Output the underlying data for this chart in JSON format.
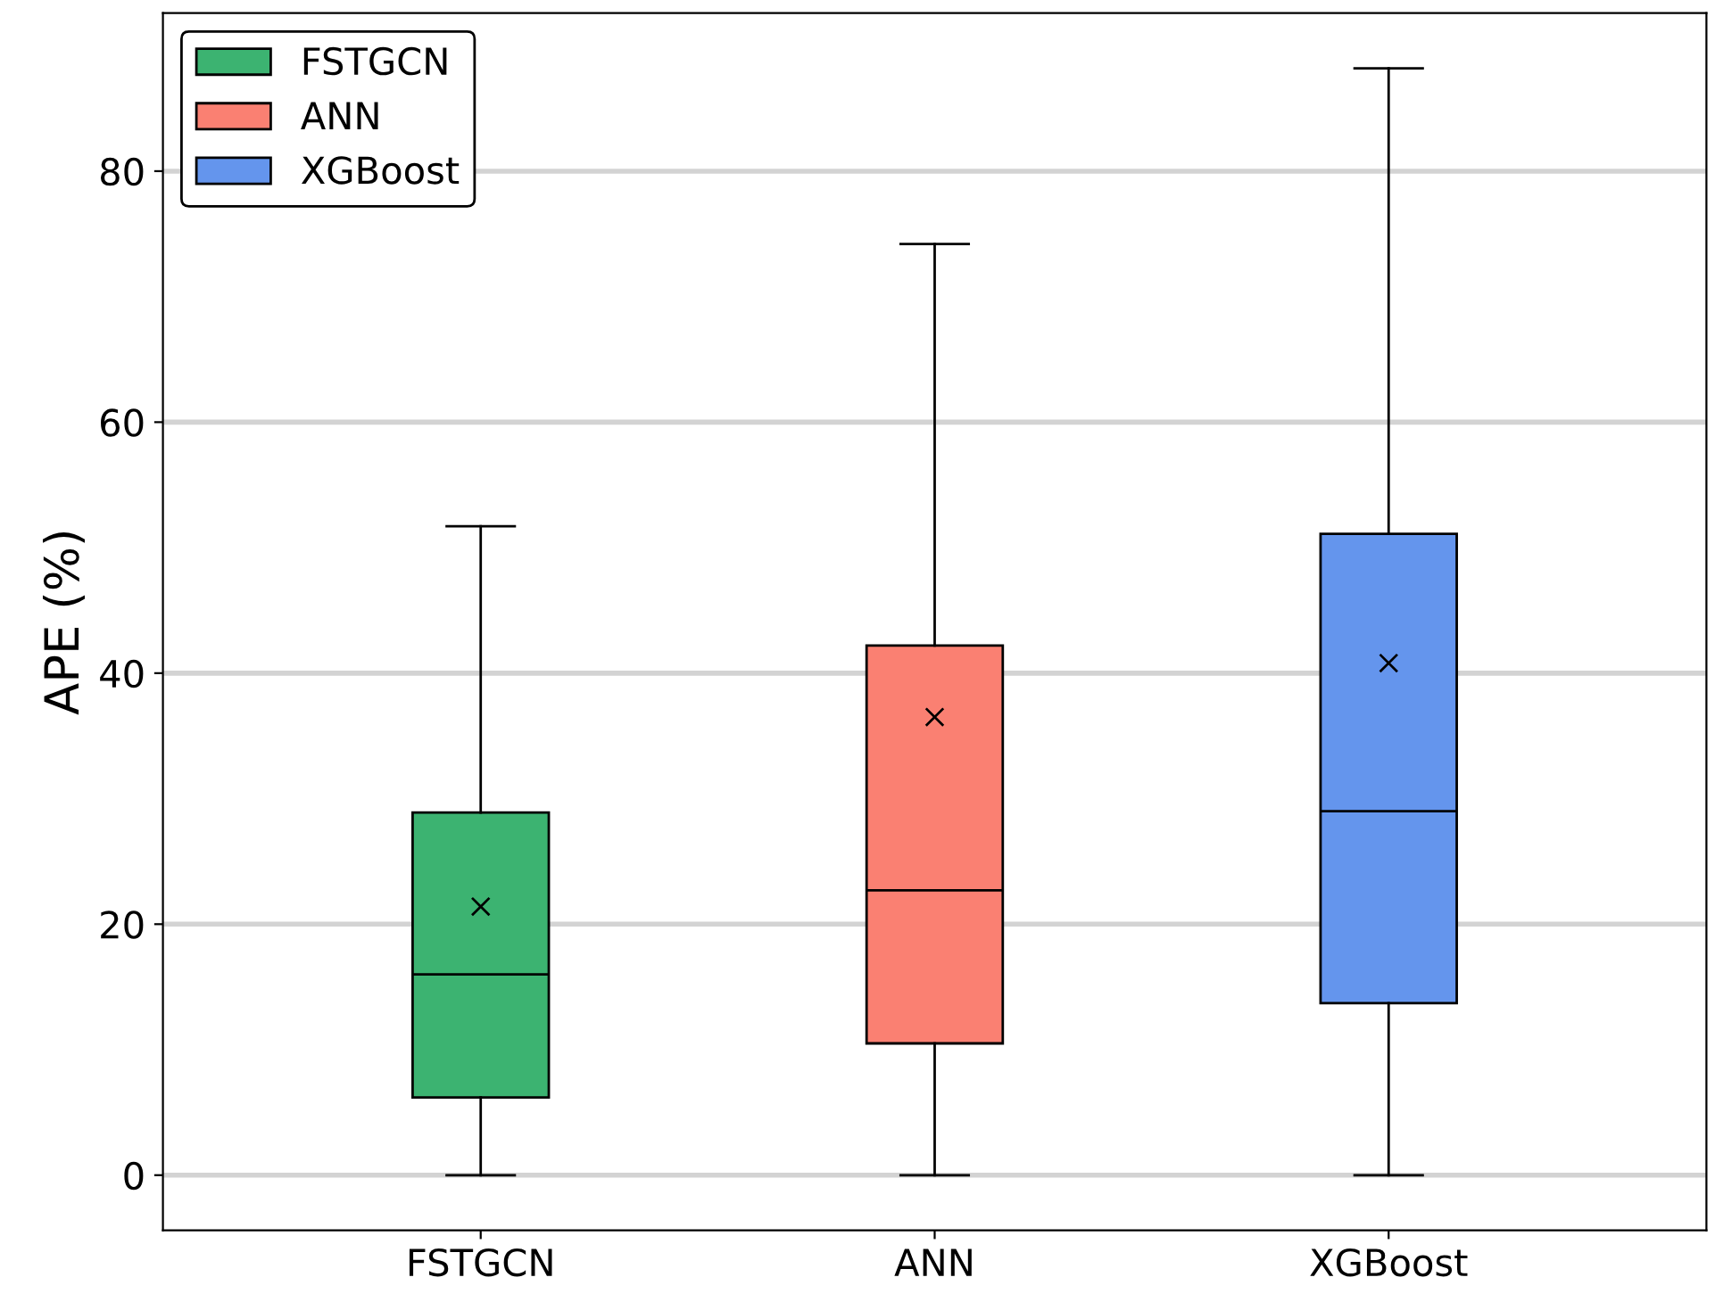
{
  "chart_data": {
    "type": "box",
    "ylabel": "APE (%)",
    "categories": [
      "FSTGCN",
      "ANN",
      "XGBoost"
    ],
    "series": [
      {
        "name": "FSTGCN",
        "color": "#3cb371",
        "boxes": [
          {
            "low": 0,
            "q1": 6.2,
            "median": 16.0,
            "q3": 28.9,
            "high": 51.7,
            "mean": 21.4
          },
          null,
          null
        ]
      },
      {
        "name": "ANN",
        "color": "#fa8072",
        "boxes": [
          null,
          {
            "low": 0,
            "q1": 10.5,
            "median": 22.7,
            "q3": 42.2,
            "high": 74.2,
            "mean": 36.5
          },
          null
        ]
      },
      {
        "name": "XGBoost",
        "color": "#6495ed",
        "boxes": [
          null,
          null,
          {
            "low": 0,
            "q1": 13.7,
            "median": 29.0,
            "q3": 51.1,
            "high": 88.2,
            "mean": 40.8
          }
        ]
      }
    ],
    "ylim": [
      -4.4,
      92.6
    ],
    "yticks": [
      0,
      20,
      40,
      60,
      80
    ],
    "grid": "y",
    "legend": "top left",
    "marker": "cross"
  }
}
